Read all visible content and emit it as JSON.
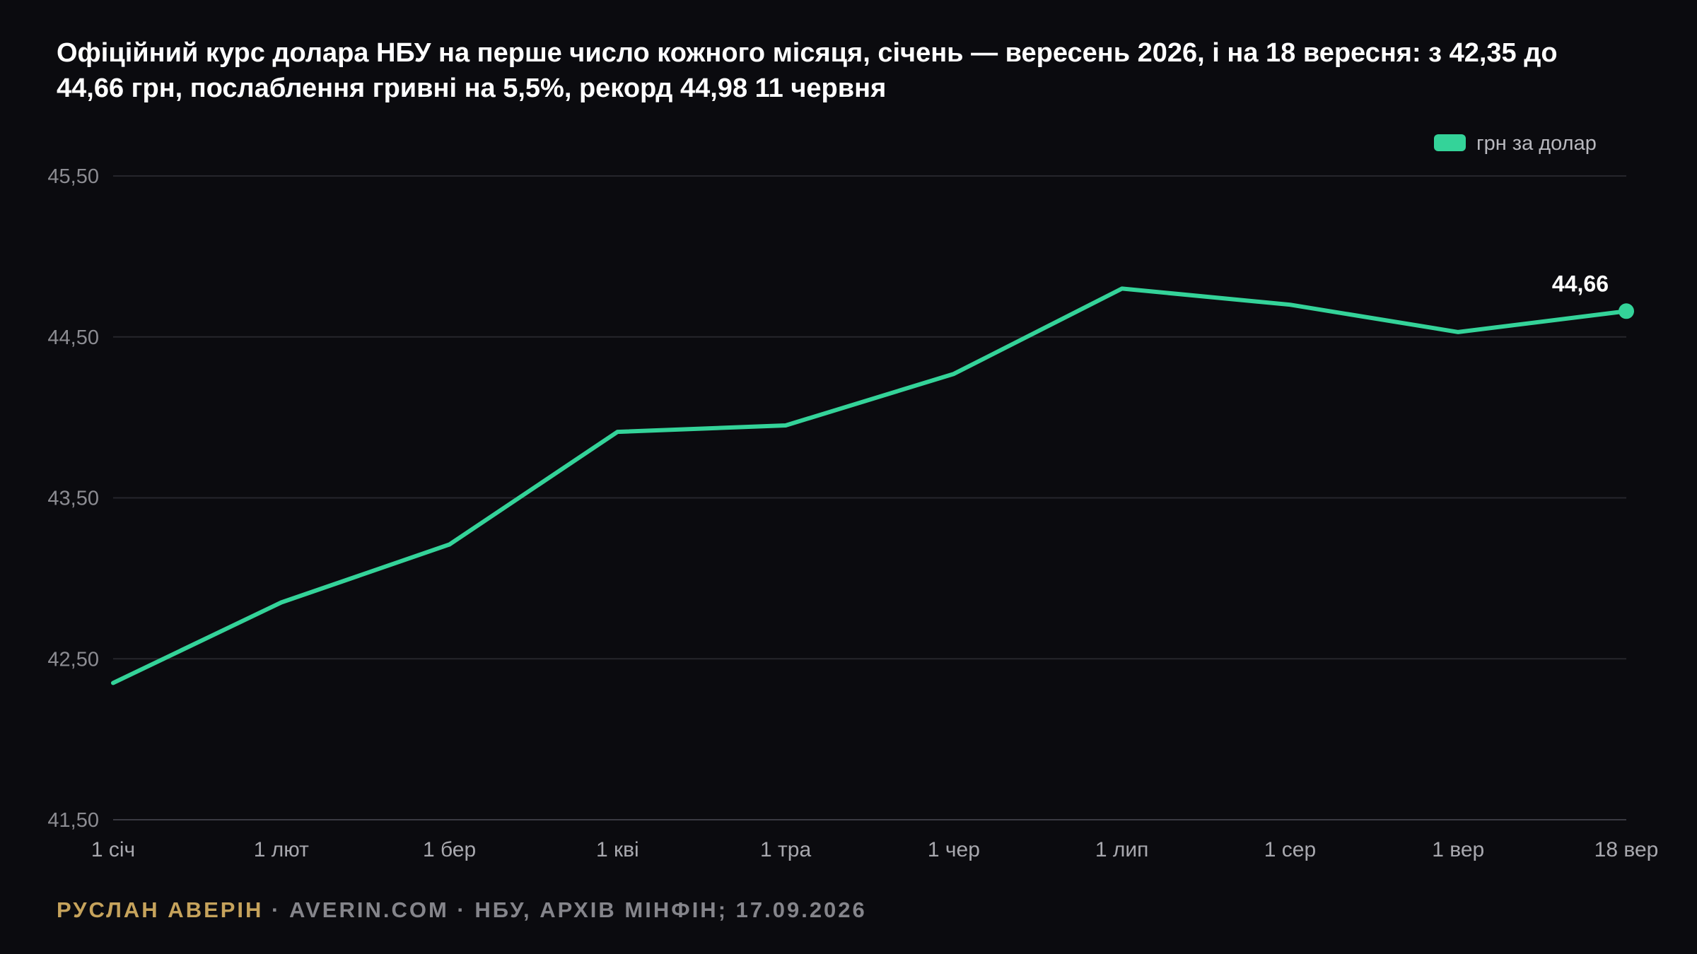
{
  "title": "Офіційний курс долара НБУ на перше число кожного місяця, січень — вересень 2026, і на 18 вересня: з 42,35 до 44,66 грн, послаблення гривні на 5,5%, рекорд 44,98 11 червня",
  "footer": {
    "author": "РУСЛАН АВЕРІН",
    "separator": " · ",
    "site": "AVERIN.COM",
    "source": "НБУ, АРХІВ МІНФІН; 17.09.2026"
  },
  "colors": {
    "background": "#0b0b0f",
    "line": "#34d399",
    "grid": "#26262c",
    "author": "#c6a35c"
  },
  "chart_data": {
    "type": "line",
    "title": "Офіційний курс долара НБУ на перше число кожного місяця, січень — вересень 2026, і на 18 вересня: з 42,35 до 44,66 грн, послаблення гривні на 5,5%, рекорд 44,98 11 червня",
    "categories": [
      "1 січ",
      "1 лют",
      "1 бер",
      "1 кві",
      "1 тра",
      "1 чер",
      "1 лип",
      "1 сер",
      "1 вер",
      "18 вер"
    ],
    "series": [
      {
        "name": "грн за долар",
        "values": [
          42.35,
          42.85,
          43.21,
          43.91,
          43.95,
          44.27,
          44.8,
          44.7,
          44.53,
          44.66
        ]
      }
    ],
    "y_ticks": [
      "45,50",
      "44,50",
      "43,50",
      "42,50",
      "41,50"
    ],
    "ylim": [
      41.5,
      45.5
    ],
    "grid": true,
    "legend_position": "top-right",
    "annotations": [
      {
        "series_index": 0,
        "point_index": 9,
        "text": "44,66"
      }
    ]
  }
}
